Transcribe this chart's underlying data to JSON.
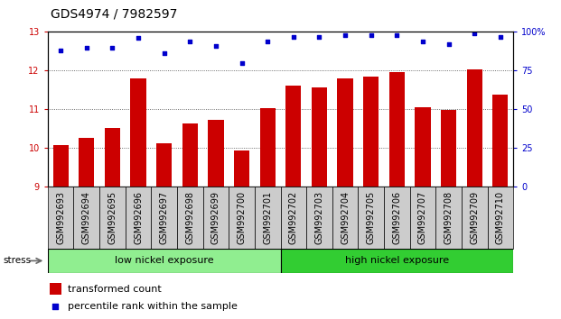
{
  "title": "GDS4974 / 7982597",
  "samples": [
    "GSM992693",
    "GSM992694",
    "GSM992695",
    "GSM992696",
    "GSM992697",
    "GSM992698",
    "GSM992699",
    "GSM992700",
    "GSM992701",
    "GSM992702",
    "GSM992703",
    "GSM992704",
    "GSM992705",
    "GSM992706",
    "GSM992707",
    "GSM992708",
    "GSM992709",
    "GSM992710"
  ],
  "bar_values": [
    10.08,
    10.25,
    10.52,
    11.8,
    10.12,
    10.63,
    10.73,
    9.93,
    11.03,
    11.62,
    11.57,
    11.8,
    11.85,
    11.95,
    11.05,
    10.98,
    12.03,
    11.38
  ],
  "percentile_values": [
    88,
    90,
    90,
    96,
    86,
    94,
    91,
    80,
    94,
    97,
    97,
    98,
    98,
    98,
    94,
    92,
    99,
    97
  ],
  "bar_color": "#cc0000",
  "dot_color": "#0000cc",
  "ylim_left": [
    9,
    13
  ],
  "ylim_right": [
    0,
    100
  ],
  "yticks_left": [
    9,
    10,
    11,
    12,
    13
  ],
  "yticks_right": [
    0,
    25,
    50,
    75,
    100
  ],
  "group1_label": "low nickel exposure",
  "group2_label": "high nickel exposure",
  "group1_count": 9,
  "group2_count": 9,
  "group1_color": "#90ee90",
  "group2_color": "#32cd32",
  "stress_label": "stress",
  "legend_bar_label": "transformed count",
  "legend_dot_label": "percentile rank within the sample",
  "xlabel_color": "#cc0000",
  "ylabel_right_color": "#0000cc",
  "title_fontsize": 10,
  "tick_fontsize": 7,
  "bar_width": 0.6,
  "grid_color": "#444444"
}
